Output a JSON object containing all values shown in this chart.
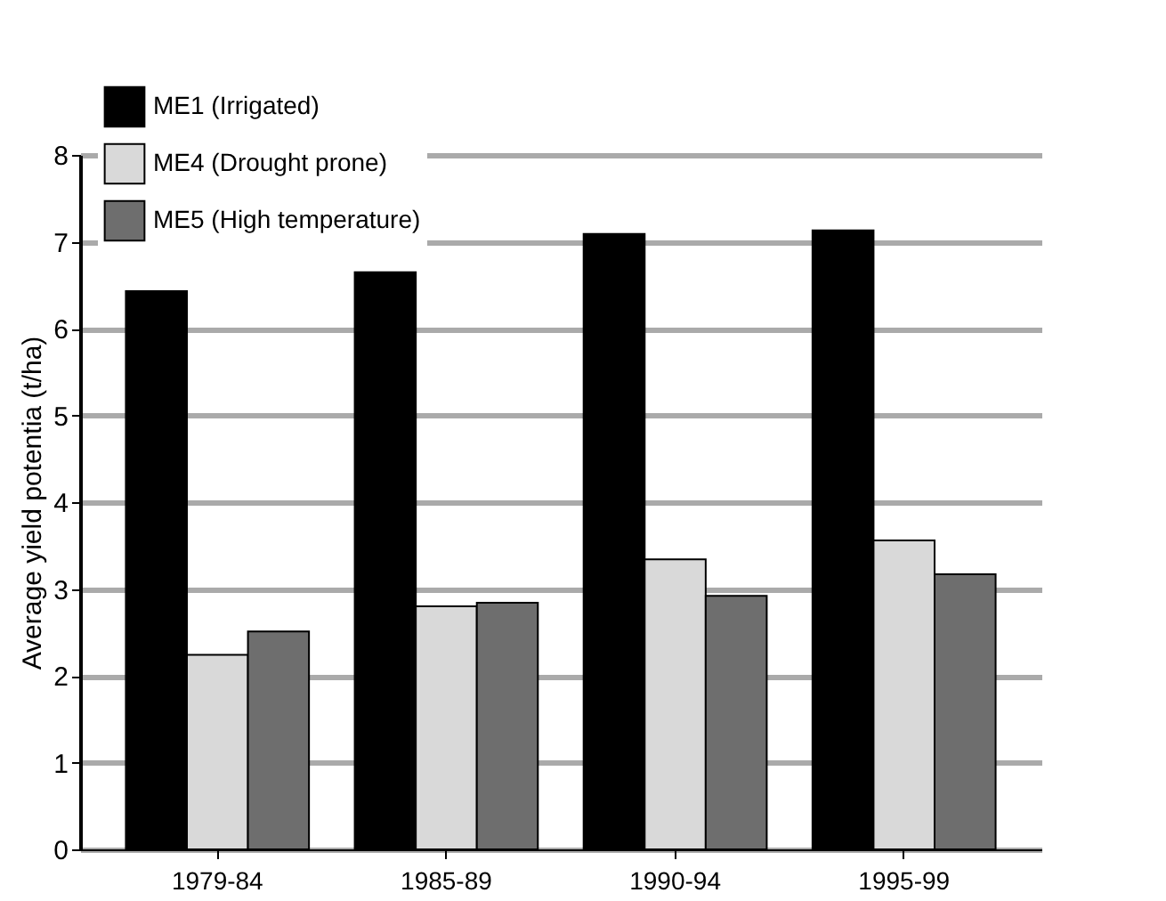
{
  "chart_data": {
    "type": "bar",
    "ylabel": "Average yield potentia (t/ha)",
    "categories": [
      "1979-84",
      "1985-89",
      "1990-94",
      "1995-99"
    ],
    "series": [
      {
        "name": "ME1 (Irrigated)",
        "color": "#000000",
        "values": [
          6.43,
          6.65,
          7.09,
          7.13
        ]
      },
      {
        "name": "ME4 (Drought prone)",
        "color": "#d9d9d9",
        "values": [
          2.24,
          2.8,
          3.34,
          3.56
        ]
      },
      {
        "name": "ME5 (High temperature)",
        "color": "#6e6e6e",
        "values": [
          2.51,
          2.84,
          2.92,
          3.17
        ]
      }
    ],
    "ylim": [
      0,
      8
    ],
    "yticks": [
      0,
      1,
      2,
      3,
      4,
      5,
      6,
      7,
      8
    ],
    "grid": "y",
    "legend": "top left"
  }
}
